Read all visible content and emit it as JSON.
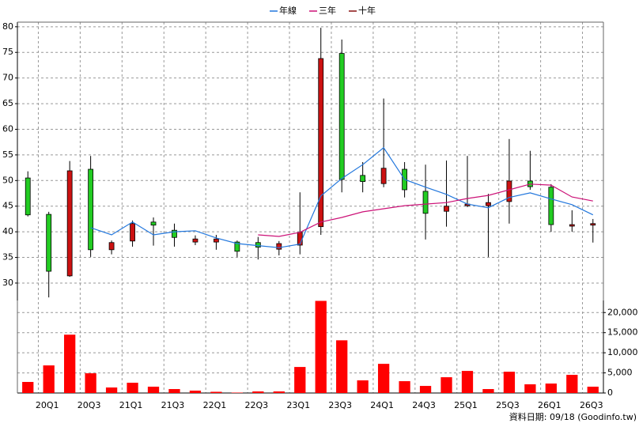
{
  "chart_data": {
    "type": "candlestick",
    "categories": [
      null,
      "20Q1",
      null,
      "20Q3",
      null,
      "21Q1",
      null,
      "21Q3",
      null,
      "22Q1",
      null,
      "22Q3",
      null,
      "23Q1",
      null,
      "23Q3",
      null,
      "24Q1",
      null,
      "24Q3",
      null,
      "25Q1",
      null,
      "25Q3",
      null,
      "26Q1",
      null,
      "26Q3"
    ],
    "open": [
      50.5,
      43.4,
      31.4,
      52.2,
      36.5,
      38.2,
      41.9,
      40.3,
      38.0,
      38.0,
      38.0,
      37.9,
      36.6,
      37.4,
      41.0,
      74.8,
      51.0,
      49.4,
      52.2,
      47.9,
      44.0,
      45.1,
      45.1,
      45.9,
      49.9,
      48.7,
      41.1,
      41.3
    ],
    "high": [
      51.8,
      43.9,
      53.8,
      54.8,
      38.3,
      42.2,
      42.8,
      41.6,
      39.3,
      39.4,
      38.3,
      39.0,
      38.2,
      47.7,
      79.8,
      77.5,
      53.6,
      66.0,
      53.6,
      53.1,
      53.9,
      54.8,
      47.4,
      58.1,
      55.8,
      49.3,
      44.2,
      42.5
    ],
    "low": [
      43.0,
      27.2,
      31.2,
      35.1,
      35.6,
      37.1,
      37.3,
      37.1,
      37.4,
      36.5,
      35.1,
      34.6,
      35.4,
      35.6,
      39.4,
      47.7,
      47.7,
      48.7,
      46.7,
      38.5,
      41.0,
      44.8,
      35.1,
      41.6,
      48.2,
      40.0,
      40.0,
      37.9
    ],
    "close": [
      43.3,
      32.3,
      51.9,
      36.5,
      37.9,
      41.6,
      41.3,
      38.9,
      38.6,
      38.6,
      36.2,
      37.0,
      37.7,
      39.9,
      73.8,
      50.2,
      49.8,
      52.4,
      48.2,
      43.6,
      45.0,
      45.4,
      45.7,
      49.9,
      48.8,
      41.4,
      41.4,
      41.6
    ],
    "up_color": "#cc1111",
    "down_color": "#22cc22",
    "series": [
      {
        "name": "年線",
        "color": "#2277dd",
        "values": [
          null,
          null,
          null,
          40.8,
          39.4,
          41.9,
          39.4,
          40.0,
          40.2,
          38.8,
          37.7,
          37.3,
          36.9,
          37.6,
          47.0,
          50.4,
          53.1,
          56.4,
          50.2,
          48.7,
          47.3,
          45.4,
          44.7,
          46.7,
          47.6,
          46.4,
          45.3,
          43.3
        ]
      },
      {
        "name": "三年",
        "color": "#cc1177",
        "values": [
          null,
          null,
          null,
          null,
          null,
          null,
          null,
          null,
          null,
          null,
          null,
          39.4,
          39.1,
          39.9,
          41.9,
          42.8,
          43.9,
          44.5,
          45.1,
          45.4,
          45.7,
          46.5,
          47.1,
          48.2,
          49.3,
          49.1,
          46.8,
          46.0
        ]
      },
      {
        "name": "十年",
        "color": "#881111",
        "values": [
          null,
          null,
          null,
          null,
          null,
          null,
          null,
          null,
          null,
          null,
          null,
          null,
          null,
          null,
          null,
          null,
          null,
          null,
          null,
          null,
          null,
          null,
          null,
          null,
          null,
          null,
          null,
          null
        ]
      }
    ],
    "volume": {
      "color": "#ff0000",
      "axis": "y2",
      "values": [
        2750,
        6860,
        14500,
        4900,
        1370,
        2550,
        1570,
        980,
        590,
        300,
        100,
        390,
        390,
        6470,
        22900,
        13100,
        3140,
        7250,
        2940,
        1760,
        3920,
        5490,
        980,
        5290,
        2160,
        2350,
        4510,
        1570
      ]
    },
    "ylim": [
      26.6,
      80.9
    ],
    "yticks": [
      30,
      35,
      40,
      45,
      50,
      55,
      60,
      65,
      70,
      75,
      80
    ],
    "y2lim": [
      0,
      23000
    ],
    "y2ticks": [
      0,
      {
        "value": 5000,
        "label": "5,000"
      },
      {
        "value": 10000,
        "label": "10,000"
      },
      {
        "value": 15000,
        "label": "15,000"
      },
      {
        "value": 20000,
        "label": "20,000"
      }
    ],
    "grid": true,
    "legend": "top",
    "note": "資料日期: 09/18 (Goodinfo.tw)"
  }
}
